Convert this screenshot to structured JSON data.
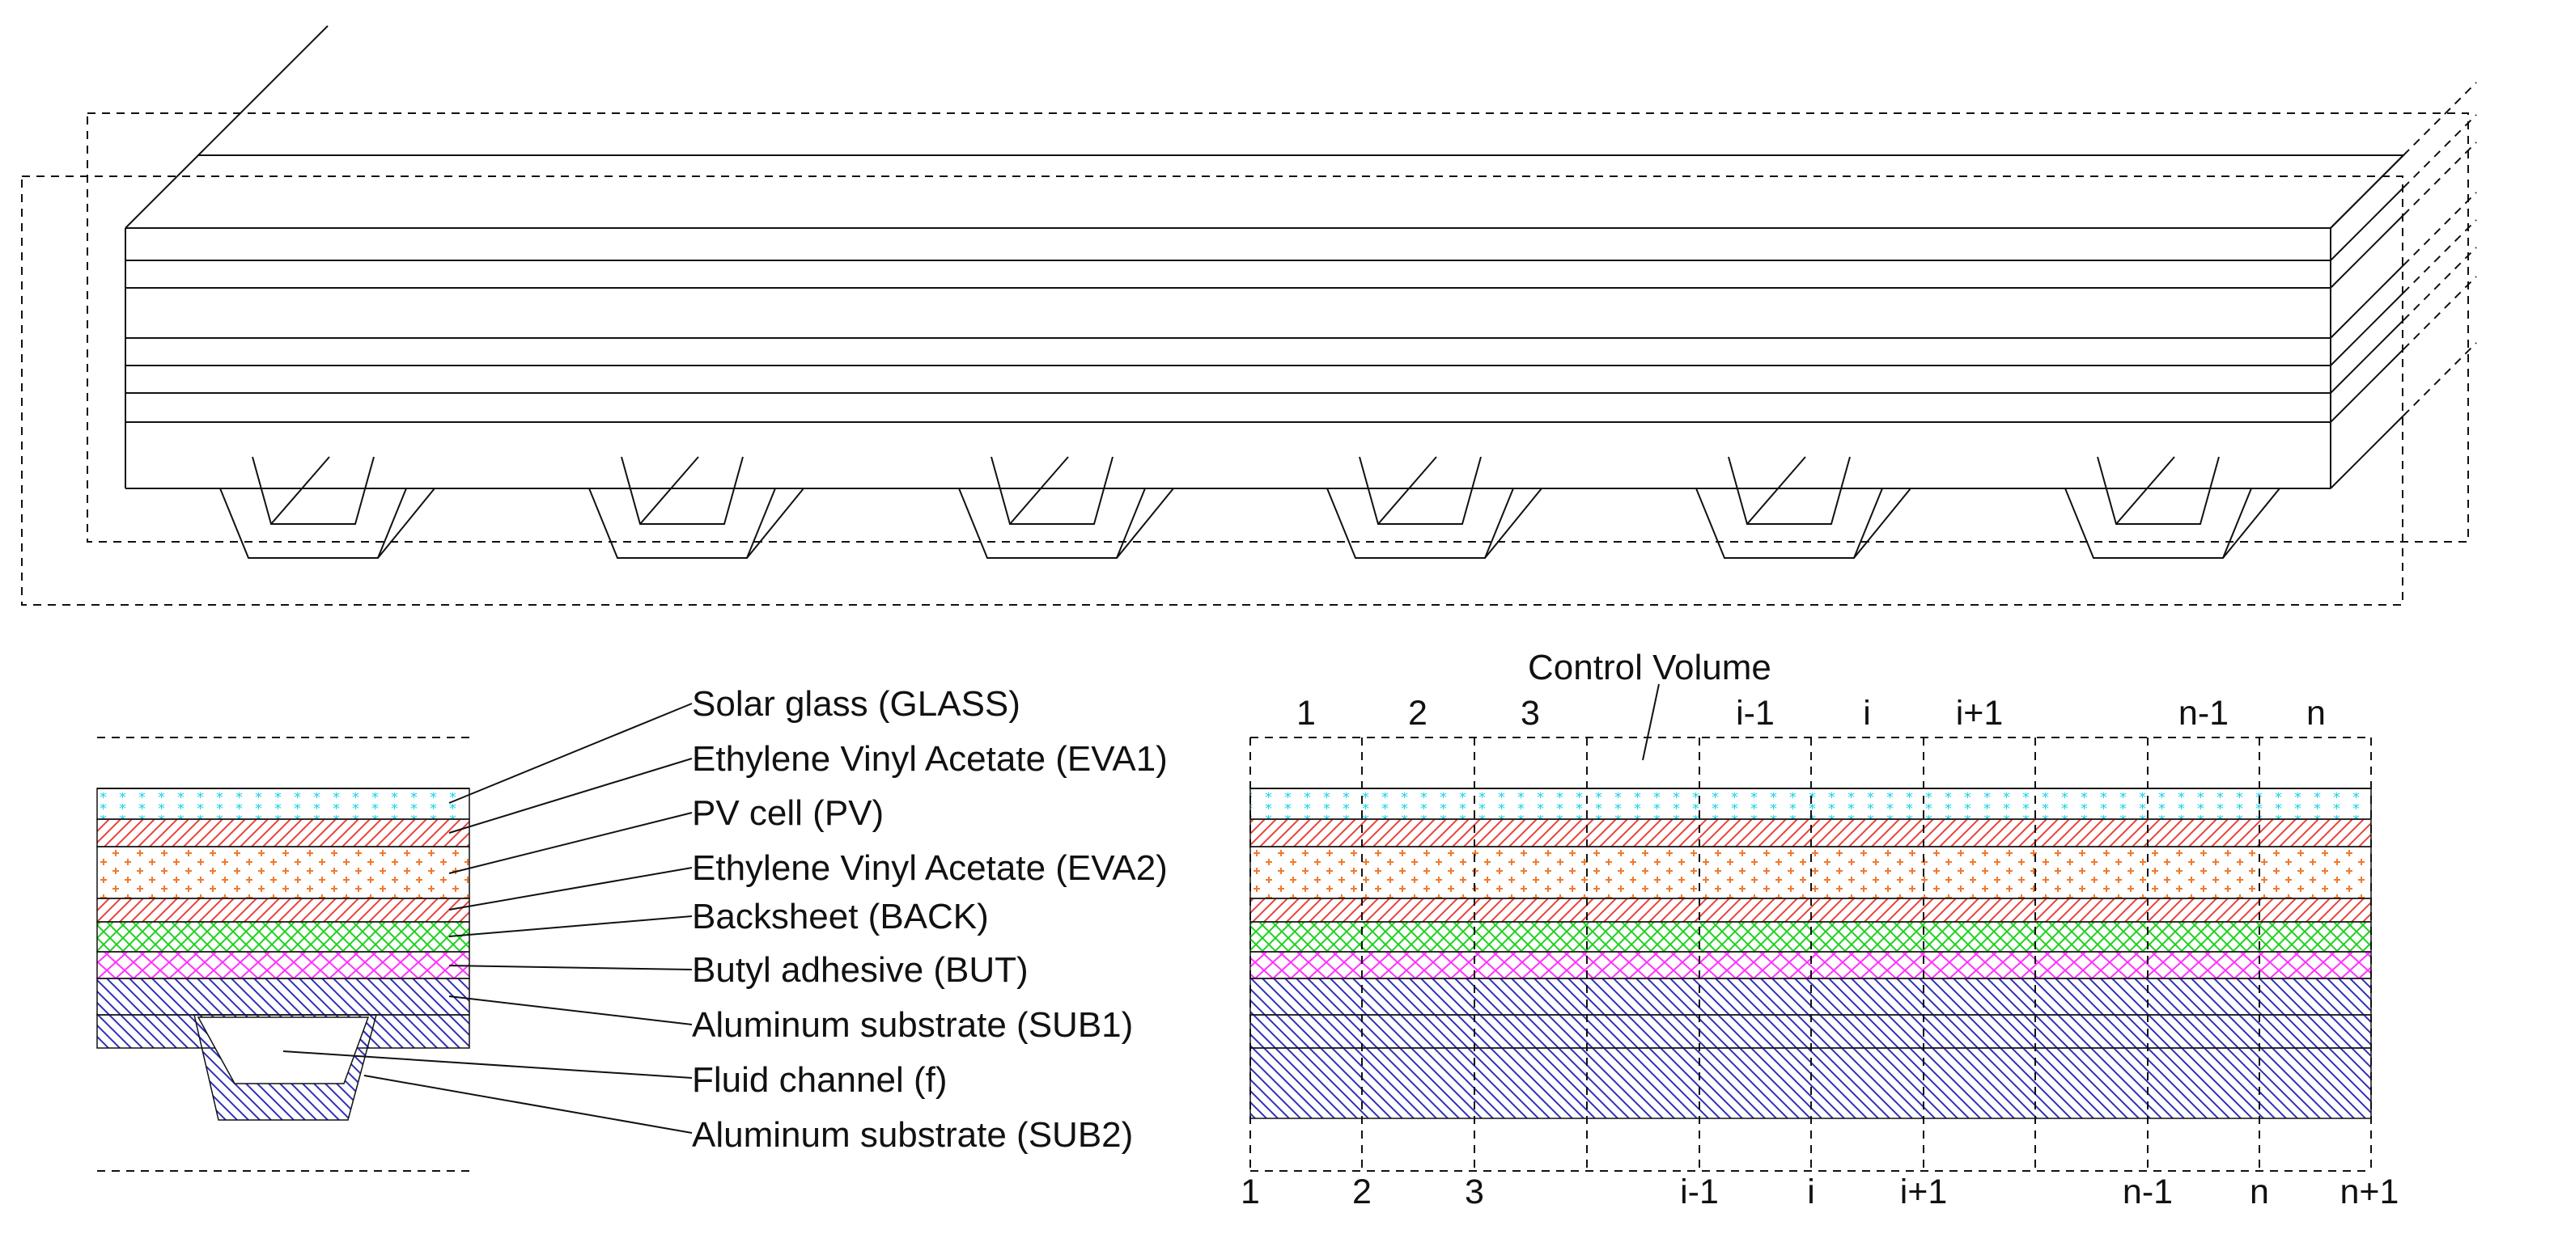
{
  "labels": {
    "control_volume": "Control Volume",
    "layers": [
      "Solar glass (GLASS)",
      "Ethylene Vinyl Acetate (EVA1)",
      "PV cell (PV)",
      "Ethylene Vinyl Acetate (EVA2)",
      "Backsheet (BACK)",
      "Butyl adhesive (BUT)",
      "Aluminum substrate (SUB1)",
      "Fluid channel (f)",
      "Aluminum substrate (SUB2)"
    ],
    "cells_top": [
      "1",
      "2",
      "3",
      "i-1",
      "i",
      "i+1",
      "n-1",
      "n"
    ],
    "nodes_bottom": [
      "1",
      "2",
      "3",
      "i-1",
      "i",
      "i+1",
      "n-1",
      "n",
      "n+1"
    ]
  },
  "colors": {
    "glass": "#1fd3e6",
    "eva": "#f07a2e",
    "pv": "#e8423b",
    "back": "#e8423b",
    "but": "#1fd11f",
    "adhesive": "#ff33ff",
    "substrate": "#2f2fb8",
    "outline": "#111111"
  }
}
